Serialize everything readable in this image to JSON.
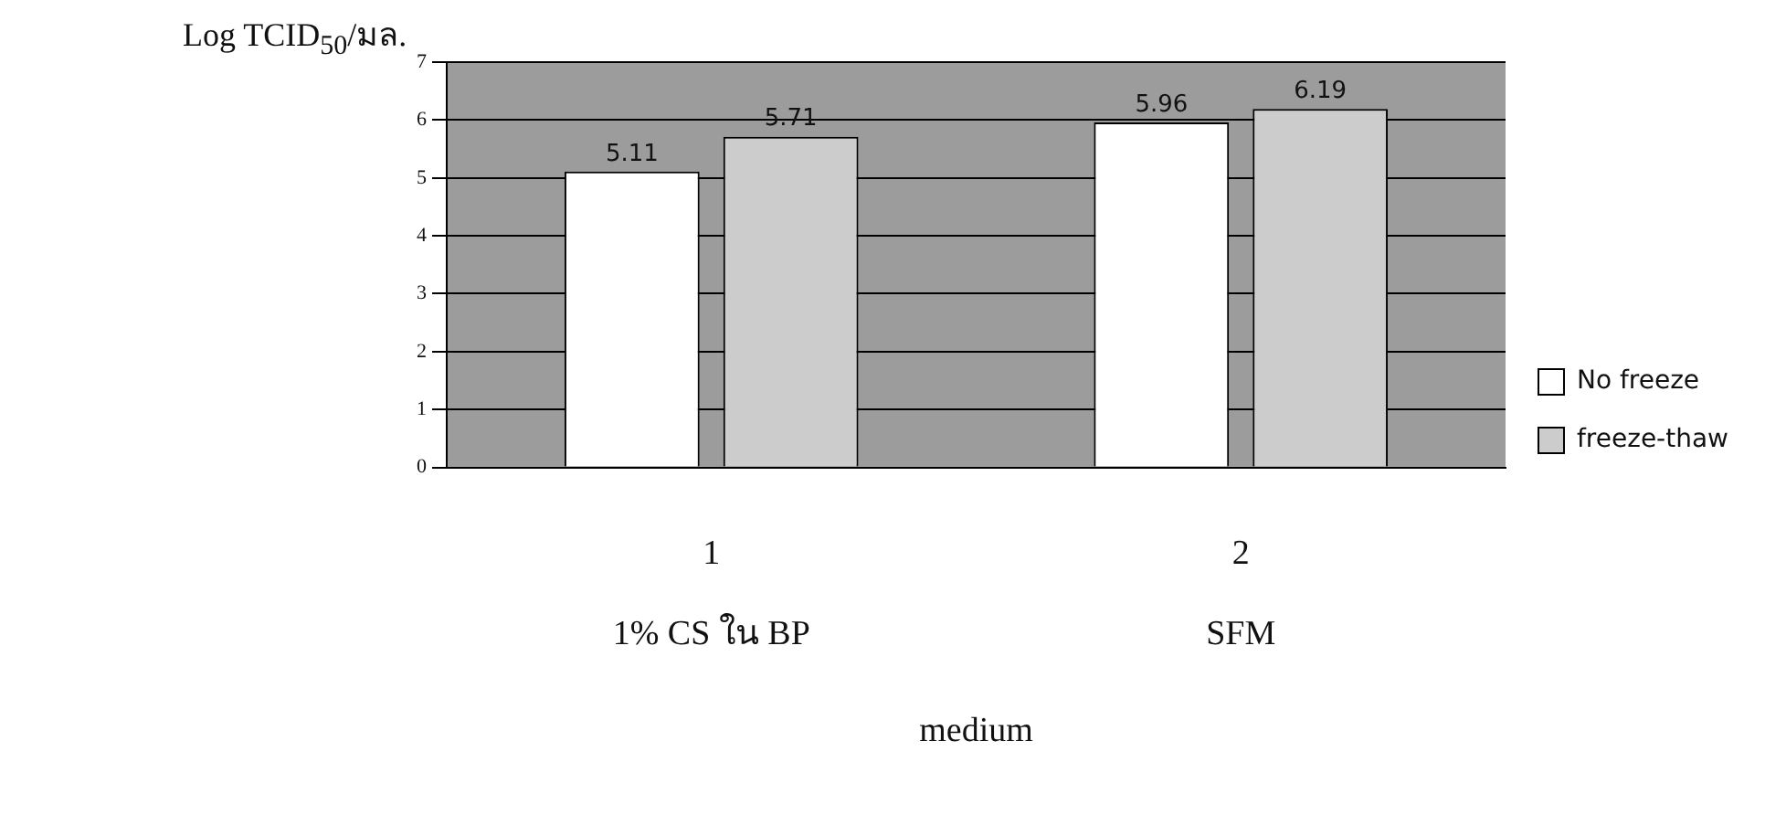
{
  "chart_data": {
    "type": "bar",
    "ylabel": "Log TCID$_{50}$/มล.",
    "xlabel": "medium",
    "categories": [
      "1\n1% CS ใน BP",
      "2\nSFM"
    ],
    "series": [
      {
        "name": "No freeze",
        "color": "#ffffff",
        "values": [
          5.11,
          5.96
        ]
      },
      {
        "name": "freeze-thaw",
        "color": "#cccccc",
        "values": [
          5.71,
          6.19
        ]
      }
    ],
    "ylim": [
      0,
      7
    ],
    "yticks": [
      0,
      1,
      2,
      3,
      4,
      5,
      6,
      7
    ],
    "grid": "y",
    "legend": "right",
    "data_labels": true
  }
}
